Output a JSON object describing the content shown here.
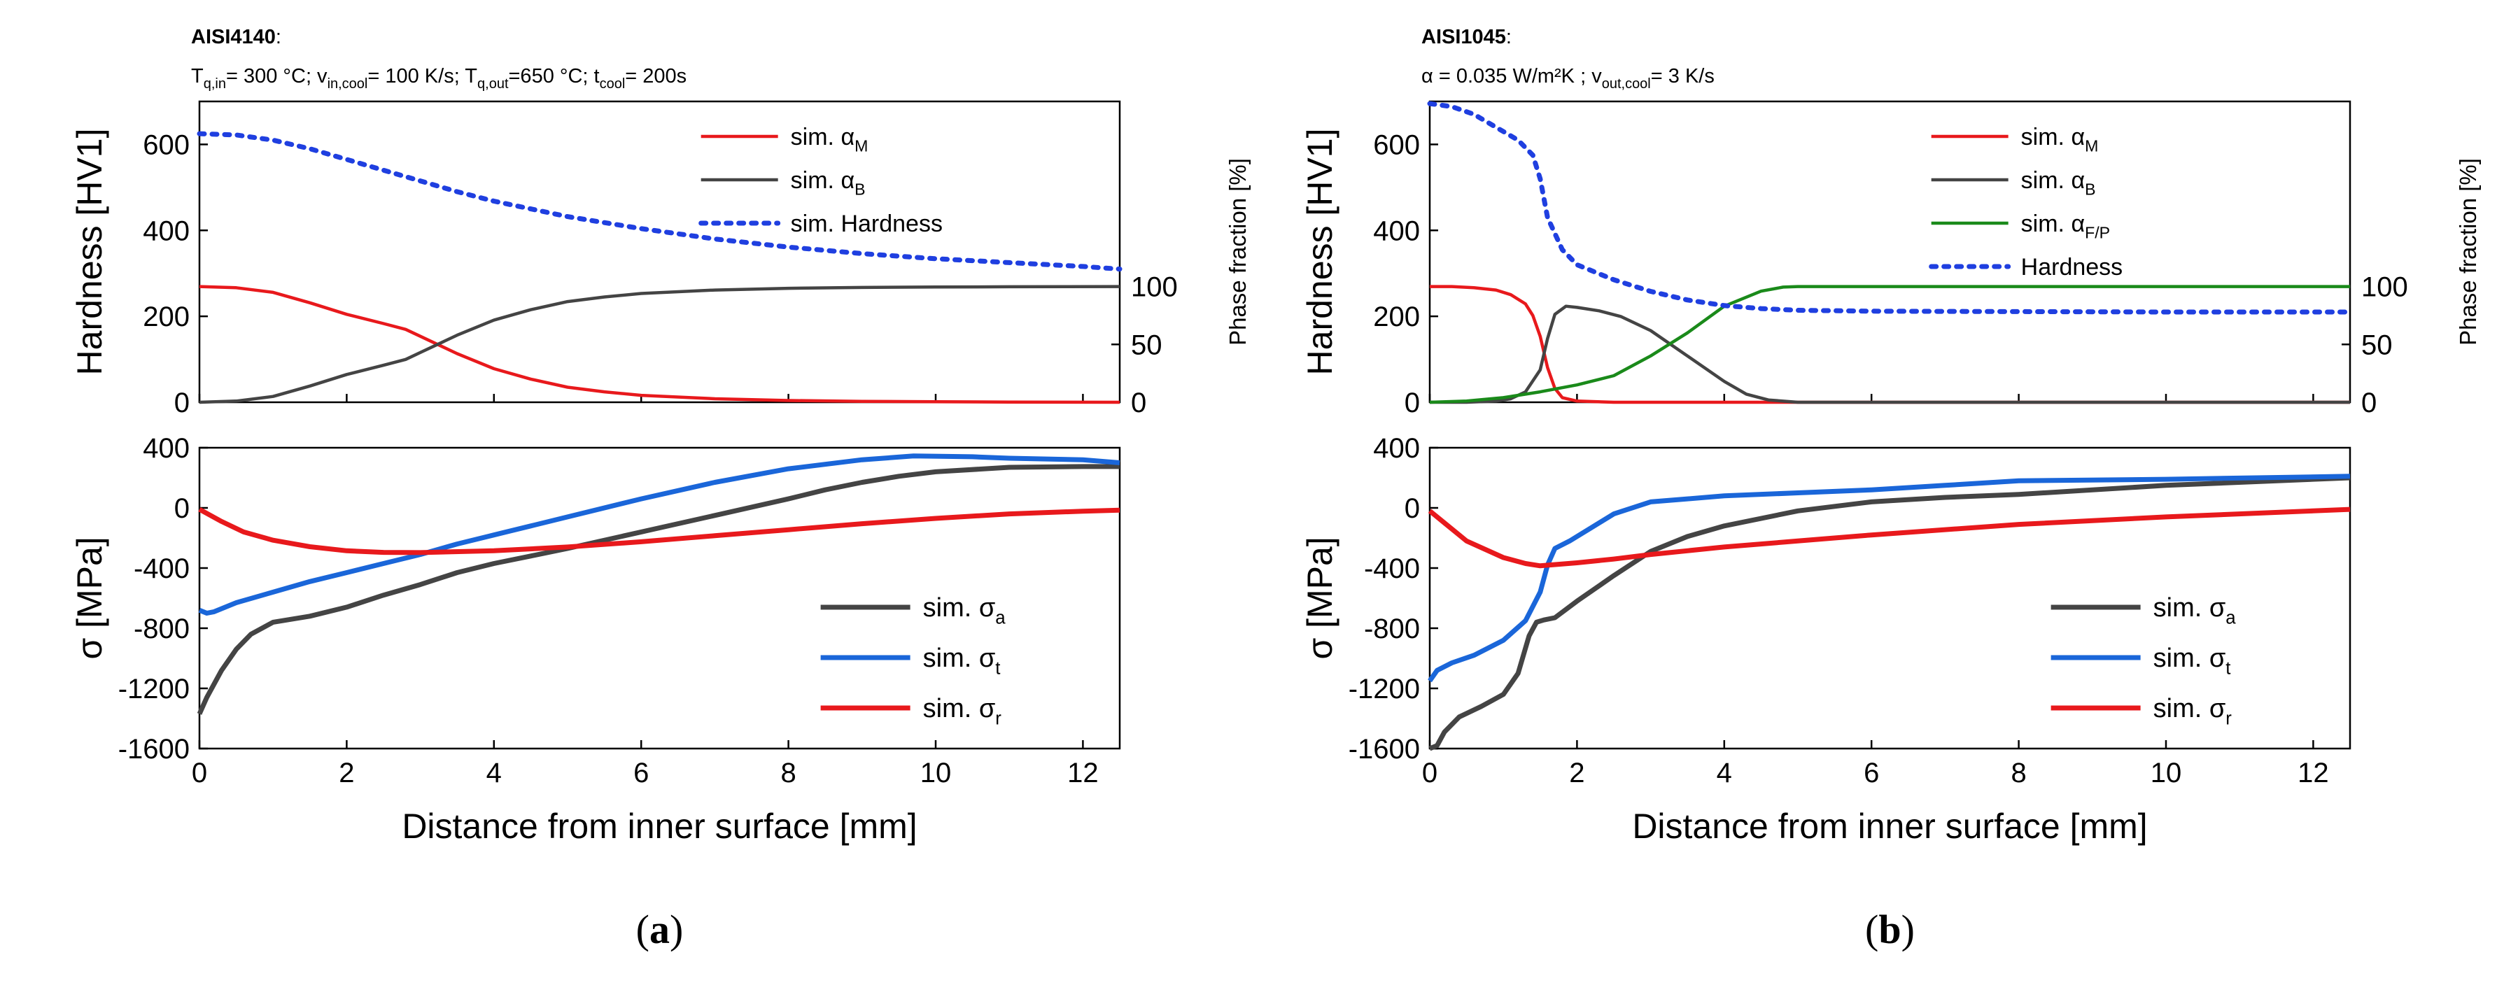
{
  "figure": {
    "caption_a_open": "(",
    "caption_a_letter": "a",
    "caption_a_close": ")",
    "caption_b_open": "(",
    "caption_b_letter": "b",
    "caption_b_close": ")"
  },
  "panel_a": {
    "title": "AISI4140",
    "title_suffix": ":",
    "subtitle_parts": [
      {
        "t": "T",
        "sub": false
      },
      {
        "t": "q,in",
        "sub": true
      },
      {
        "t": "= 300 °C; v",
        "sub": false
      },
      {
        "t": "in,cool",
        "sub": true
      },
      {
        "t": "= 100 K/s; T",
        "sub": false
      },
      {
        "t": "q,out",
        "sub": true
      },
      {
        "t": "=650 °C; t",
        "sub": false
      },
      {
        "t": "cool",
        "sub": true
      },
      {
        "t": "= 200s",
        "sub": false
      }
    ]
  },
  "panel_b": {
    "title": "AISI1045",
    "title_suffix": ":",
    "subtitle_parts": [
      {
        "t": "α = 0.035 W/m²K ; v",
        "sub": false
      },
      {
        "t": "out,cool",
        "sub": true
      },
      {
        "t": "= 3 K/s",
        "sub": false
      }
    ]
  },
  "colors": {
    "red": "#e8191c",
    "dark": "#444444",
    "blue": "#1a66d9",
    "green": "#1a8a1a",
    "hardness": "#1f3fe0"
  },
  "chart_data": [
    {
      "id": "a_top",
      "type": "line",
      "xlim": [
        0,
        12.5
      ],
      "ylim": [
        0,
        700
      ],
      "ylabel": "Hardness [HV1]",
      "yticks": [
        "0",
        "200",
        "400",
        "600"
      ],
      "ylabel2": "Phase fraction [%]",
      "y2lim": [
        0,
        260
      ],
      "y2ticks": [
        "0",
        "50",
        "100"
      ],
      "legend_position": "top-right",
      "series": [
        {
          "name": "sim. αM",
          "label": "sim. α",
          "label_sub": "M",
          "color_key": "red",
          "dash": false,
          "axis": "right",
          "x": [
            0,
            0.5,
            1,
            1.5,
            2,
            2.5,
            2.8,
            3,
            3.5,
            4,
            4.5,
            5,
            5.5,
            6,
            7,
            8,
            9,
            10,
            11,
            12.5
          ],
          "y": [
            100,
            99,
            95,
            86,
            76,
            68,
            63,
            57,
            42,
            29,
            20,
            13,
            9,
            6,
            3,
            1.5,
            0.8,
            0.4,
            0.2,
            0
          ]
        },
        {
          "name": "sim. αB",
          "label": "sim. α",
          "label_sub": "B",
          "color_key": "dark",
          "dash": false,
          "axis": "right",
          "x": [
            0,
            0.5,
            1,
            1.5,
            2,
            2.5,
            2.8,
            3,
            3.5,
            4,
            4.5,
            5,
            5.5,
            6,
            7,
            8,
            9,
            10,
            11,
            12.5
          ],
          "y": [
            0,
            1,
            5,
            14,
            24,
            32,
            37,
            43,
            58,
            71,
            80,
            87,
            91,
            94,
            97,
            98.5,
            99.2,
            99.6,
            99.8,
            100
          ]
        },
        {
          "name": "sim. Hardness",
          "label": "sim. Hardness",
          "label_sub": "",
          "color_key": "hardness",
          "dash": true,
          "axis": "left",
          "x": [
            0,
            0.5,
            1,
            1.5,
            2,
            2.5,
            3,
            3.5,
            4,
            4.5,
            5,
            6,
            7,
            8,
            9,
            10,
            11,
            12,
            12.5
          ],
          "y": [
            625,
            622,
            610,
            590,
            565,
            540,
            515,
            490,
            468,
            450,
            432,
            404,
            380,
            361,
            346,
            334,
            325,
            316,
            310
          ]
        }
      ]
    },
    {
      "id": "a_bottom",
      "type": "line",
      "xlim": [
        0,
        12.5
      ],
      "ylim": [
        -1600,
        400
      ],
      "ylabel": "σ [MPa]",
      "yticks": [
        "-1600",
        "-1200",
        "-800",
        "-400",
        "0",
        "400"
      ],
      "xlabel": "Distance from inner surface [mm]",
      "xticks": [
        "0",
        "2",
        "4",
        "6",
        "8",
        "10",
        "12"
      ],
      "legend_position": "bottom-right",
      "series": [
        {
          "name": "sim. σa",
          "label": "sim. σ",
          "label_sub": "a",
          "color_key": "dark",
          "x": [
            0,
            0.1,
            0.3,
            0.5,
            0.7,
            1,
            1.5,
            2,
            2.5,
            3,
            3.5,
            4,
            4.5,
            5,
            6,
            7,
            8,
            8.5,
            9,
            9.5,
            10,
            11,
            12,
            12.5
          ],
          "y": [
            -1370,
            -1260,
            -1080,
            -940,
            -840,
            -760,
            -720,
            -660,
            -580,
            -510,
            -430,
            -370,
            -320,
            -270,
            -160,
            -50,
            60,
            120,
            170,
            210,
            240,
            270,
            275,
            275
          ]
        },
        {
          "name": "sim. σt",
          "label": "sim. σ",
          "label_sub": "t",
          "color_key": "blue",
          "x": [
            0,
            0.1,
            0.2,
            0.5,
            1,
            1.5,
            2,
            2.5,
            3,
            3.5,
            4,
            4.5,
            5,
            6,
            7,
            8,
            9,
            9.7,
            10.5,
            11,
            12,
            12.5
          ],
          "y": [
            -680,
            -700,
            -690,
            -630,
            -560,
            -490,
            -430,
            -370,
            -310,
            -240,
            -180,
            -120,
            -60,
            60,
            170,
            260,
            320,
            345,
            340,
            330,
            320,
            300
          ]
        },
        {
          "name": "sim. σr",
          "label": "sim. σ",
          "label_sub": "r",
          "color_key": "red",
          "x": [
            0,
            0.3,
            0.6,
            1,
            1.5,
            2,
            2.5,
            3,
            4,
            5,
            6,
            7,
            8,
            9,
            10,
            11,
            12,
            12.5
          ],
          "y": [
            -10,
            -90,
            -160,
            -215,
            -258,
            -285,
            -296,
            -297,
            -285,
            -260,
            -225,
            -185,
            -145,
            -105,
            -70,
            -40,
            -22,
            -15
          ]
        }
      ]
    },
    {
      "id": "b_top",
      "type": "line",
      "xlim": [
        0,
        12.5
      ],
      "ylim": [
        0,
        700
      ],
      "ylabel": "Hardness [HV1]",
      "yticks": [
        "0",
        "200",
        "400",
        "600"
      ],
      "ylabel2": "Phase fraction [%]",
      "y2lim": [
        0,
        260
      ],
      "y2ticks": [
        "0",
        "50",
        "100"
      ],
      "legend_position": "top-right",
      "series": [
        {
          "name": "sim. αM",
          "label": "sim. α",
          "label_sub": "M",
          "color_key": "red",
          "dash": false,
          "axis": "right",
          "x": [
            0,
            0.3,
            0.6,
            0.9,
            1.1,
            1.3,
            1.4,
            1.5,
            1.6,
            1.7,
            1.8,
            2,
            2.5,
            3,
            4,
            6,
            8,
            10,
            12.5
          ],
          "y": [
            100,
            100,
            99,
            97,
            93,
            85,
            75,
            57,
            30,
            12,
            4,
            1,
            0,
            0,
            0,
            0,
            0,
            0,
            0
          ]
        },
        {
          "name": "sim. αB",
          "label": "sim. α",
          "label_sub": "B",
          "color_key": "dark",
          "dash": false,
          "axis": "right",
          "x": [
            0,
            0.5,
            0.9,
            1.1,
            1.3,
            1.5,
            1.6,
            1.7,
            1.85,
            2,
            2.3,
            2.6,
            3,
            3.5,
            4,
            4.3,
            4.6,
            5,
            6,
            8,
            12.5
          ],
          "y": [
            0,
            0,
            1,
            3,
            9,
            28,
            55,
            76,
            83,
            82,
            79,
            74,
            62,
            40,
            18,
            7,
            2,
            0,
            0,
            0,
            0
          ]
        },
        {
          "name": "sim. αF/P",
          "label": "sim. α",
          "label_sub": "F/P",
          "color_key": "green",
          "dash": false,
          "axis": "right",
          "x": [
            0,
            0.5,
            1,
            1.5,
            2,
            2.5,
            3,
            3.5,
            4,
            4.5,
            4.8,
            5,
            6,
            8,
            10,
            12.5
          ],
          "y": [
            0,
            1,
            4,
            9,
            15,
            23,
            40,
            60,
            83,
            96,
            99.5,
            100,
            100,
            100,
            100,
            100
          ]
        },
        {
          "name": "Hardness",
          "label": "Hardness",
          "label_sub": "",
          "color_key": "hardness",
          "dash": true,
          "axis": "left",
          "x": [
            0,
            0.3,
            0.6,
            0.9,
            1.2,
            1.4,
            1.5,
            1.6,
            1.8,
            2,
            2.5,
            3,
            3.5,
            4,
            4.5,
            5,
            6,
            8,
            10,
            12.5
          ],
          "y": [
            695,
            688,
            670,
            640,
            610,
            575,
            520,
            430,
            355,
            320,
            285,
            258,
            238,
            225,
            218,
            214,
            212,
            211,
            210,
            210
          ]
        }
      ]
    },
    {
      "id": "b_bottom",
      "type": "line",
      "xlim": [
        0,
        12.5
      ],
      "ylim": [
        -1600,
        400
      ],
      "ylabel": "σ [MPa]",
      "yticks": [
        "-1600",
        "-1200",
        "-800",
        "-400",
        "0",
        "400"
      ],
      "xlabel": "Distance from inner surface [mm]",
      "xticks": [
        "0",
        "2",
        "4",
        "6",
        "8",
        "10",
        "12"
      ],
      "legend_position": "bottom-right",
      "series": [
        {
          "name": "sim. σa",
          "label": "sim. σ",
          "label_sub": "a",
          "color_key": "dark",
          "x": [
            0,
            0.1,
            0.2,
            0.4,
            0.7,
            1,
            1.2,
            1.35,
            1.45,
            1.55,
            1.7,
            2,
            2.5,
            3,
            3.5,
            4,
            5,
            6,
            7,
            8,
            10,
            12.5
          ],
          "y": [
            -1600,
            -1580,
            -1490,
            -1390,
            -1320,
            -1240,
            -1100,
            -850,
            -760,
            -745,
            -730,
            -620,
            -450,
            -290,
            -190,
            -120,
            -20,
            40,
            70,
            90,
            150,
            200
          ]
        },
        {
          "name": "sim. σt",
          "label": "sim. σ",
          "label_sub": "t",
          "color_key": "blue",
          "x": [
            0,
            0.1,
            0.3,
            0.6,
            1,
            1.3,
            1.5,
            1.6,
            1.7,
            1.9,
            2.2,
            2.5,
            3,
            3.5,
            4,
            5,
            6,
            7,
            8,
            10,
            12.5
          ],
          "y": [
            -1150,
            -1080,
            -1030,
            -980,
            -880,
            -750,
            -560,
            -380,
            -270,
            -220,
            -130,
            -40,
            40,
            60,
            80,
            100,
            120,
            150,
            180,
            190,
            210
          ]
        },
        {
          "name": "sim. σr",
          "label": "sim. σ",
          "label_sub": "r",
          "color_key": "red",
          "x": [
            0,
            0.2,
            0.5,
            1,
            1.3,
            1.5,
            2,
            2.5,
            3,
            4,
            5,
            6,
            8,
            10,
            12,
            12.5
          ],
          "y": [
            -20,
            -100,
            -220,
            -330,
            -370,
            -385,
            -365,
            -340,
            -310,
            -260,
            -220,
            -180,
            -110,
            -60,
            -20,
            -10
          ]
        }
      ]
    }
  ]
}
